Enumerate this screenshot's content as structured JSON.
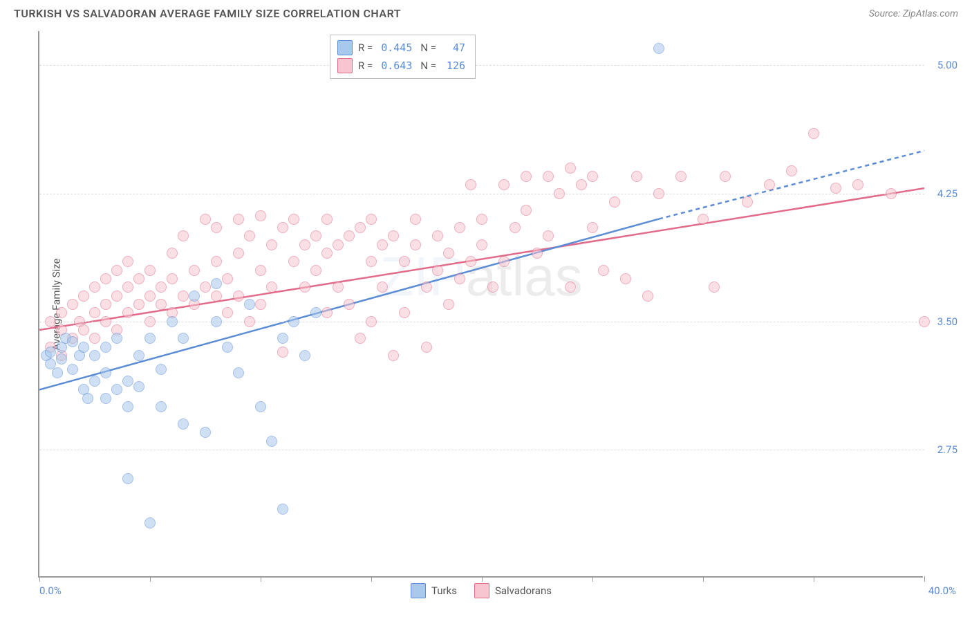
{
  "title": "TURKISH VS SALVADORAN AVERAGE FAMILY SIZE CORRELATION CHART",
  "source": "Source: ZipAtlas.com",
  "watermark_part1": "ZIP",
  "watermark_part2": "atlas",
  "chart": {
    "type": "scatter",
    "y_axis_title": "Average Family Size",
    "xlim": [
      0,
      40
    ],
    "ylim": [
      2.0,
      5.2
    ],
    "x_start_label": "0.0%",
    "x_end_label": "40.0%",
    "x_ticks": [
      0,
      5,
      10,
      15,
      20,
      25,
      30,
      35,
      40
    ],
    "y_gridlines": [
      2.75,
      3.5,
      4.25,
      5.0
    ],
    "y_tick_labels": [
      "2.75",
      "3.50",
      "4.25",
      "5.00"
    ],
    "background_color": "#ffffff",
    "grid_color": "#dddddd",
    "axis_color": "#999999",
    "tick_label_color": "#5b8dd6",
    "series": {
      "turks": {
        "label": "Turks",
        "fill": "#a8c8ec",
        "stroke": "#5b8dd6",
        "R": "0.445",
        "N": "47",
        "trend": {
          "x1": 0,
          "y1": 3.1,
          "x2": 28,
          "y2": 4.1,
          "x2_dash": 40,
          "y2_dash": 4.5
        },
        "points": [
          [
            0.3,
            3.3
          ],
          [
            0.5,
            3.25
          ],
          [
            0.5,
            3.32
          ],
          [
            0.8,
            3.2
          ],
          [
            1.0,
            3.35
          ],
          [
            1.0,
            3.28
          ],
          [
            1.2,
            3.4
          ],
          [
            1.5,
            3.22
          ],
          [
            1.5,
            3.38
          ],
          [
            1.8,
            3.3
          ],
          [
            2.0,
            3.1
          ],
          [
            2.0,
            3.35
          ],
          [
            2.2,
            3.05
          ],
          [
            2.5,
            3.3
          ],
          [
            2.5,
            3.15
          ],
          [
            3.0,
            3.2
          ],
          [
            3.0,
            3.35
          ],
          [
            3.0,
            3.05
          ],
          [
            3.5,
            3.4
          ],
          [
            3.5,
            3.1
          ],
          [
            4.0,
            2.58
          ],
          [
            4.0,
            3.15
          ],
          [
            4.0,
            3.0
          ],
          [
            4.5,
            3.3
          ],
          [
            4.5,
            3.12
          ],
          [
            5.0,
            2.32
          ],
          [
            5.0,
            3.4
          ],
          [
            5.5,
            3.0
          ],
          [
            5.5,
            3.22
          ],
          [
            6.0,
            3.5
          ],
          [
            6.5,
            3.4
          ],
          [
            6.5,
            2.9
          ],
          [
            7.0,
            3.65
          ],
          [
            7.5,
            2.85
          ],
          [
            8.0,
            3.5
          ],
          [
            8.0,
            3.72
          ],
          [
            8.5,
            3.35
          ],
          [
            9.0,
            3.2
          ],
          [
            9.5,
            3.6
          ],
          [
            10.0,
            3.0
          ],
          [
            10.5,
            2.8
          ],
          [
            11.0,
            3.4
          ],
          [
            11.0,
            2.4
          ],
          [
            11.5,
            3.5
          ],
          [
            12.0,
            3.3
          ],
          [
            12.5,
            3.55
          ],
          [
            28.0,
            5.1
          ]
        ]
      },
      "salvadorans": {
        "label": "Salvadorans",
        "fill": "#f7c5d0",
        "stroke": "#e26b8a",
        "R": "0.643",
        "N": "126",
        "trend": {
          "x1": 0,
          "y1": 3.45,
          "x2": 40,
          "y2": 4.28
        },
        "points": [
          [
            0.5,
            3.35
          ],
          [
            0.5,
            3.5
          ],
          [
            1.0,
            3.45
          ],
          [
            1.0,
            3.55
          ],
          [
            1.0,
            3.3
          ],
          [
            1.5,
            3.6
          ],
          [
            1.5,
            3.4
          ],
          [
            1.8,
            3.5
          ],
          [
            2.0,
            3.65
          ],
          [
            2.0,
            3.45
          ],
          [
            2.5,
            3.55
          ],
          [
            2.5,
            3.7
          ],
          [
            2.5,
            3.4
          ],
          [
            3.0,
            3.6
          ],
          [
            3.0,
            3.75
          ],
          [
            3.0,
            3.5
          ],
          [
            3.5,
            3.65
          ],
          [
            3.5,
            3.8
          ],
          [
            3.5,
            3.45
          ],
          [
            4.0,
            3.55
          ],
          [
            4.0,
            3.7
          ],
          [
            4.0,
            3.85
          ],
          [
            4.5,
            3.6
          ],
          [
            4.5,
            3.75
          ],
          [
            5.0,
            3.65
          ],
          [
            5.0,
            3.8
          ],
          [
            5.0,
            3.5
          ],
          [
            5.5,
            3.7
          ],
          [
            5.5,
            3.6
          ],
          [
            6.0,
            3.75
          ],
          [
            6.0,
            3.9
          ],
          [
            6.0,
            3.55
          ],
          [
            6.5,
            3.65
          ],
          [
            6.5,
            4.0
          ],
          [
            7.0,
            3.8
          ],
          [
            7.0,
            3.6
          ],
          [
            7.5,
            4.1
          ],
          [
            7.5,
            3.7
          ],
          [
            8.0,
            3.85
          ],
          [
            8.0,
            3.65
          ],
          [
            8.0,
            4.05
          ],
          [
            8.5,
            3.75
          ],
          [
            8.5,
            3.55
          ],
          [
            9.0,
            3.9
          ],
          [
            9.0,
            4.1
          ],
          [
            9.0,
            3.65
          ],
          [
            9.5,
            3.5
          ],
          [
            9.5,
            4.0
          ],
          [
            10.0,
            3.8
          ],
          [
            10.0,
            3.6
          ],
          [
            10.0,
            4.12
          ],
          [
            10.5,
            3.7
          ],
          [
            10.5,
            3.95
          ],
          [
            11.0,
            4.05
          ],
          [
            11.0,
            3.32
          ],
          [
            11.5,
            3.85
          ],
          [
            11.5,
            4.1
          ],
          [
            12.0,
            3.95
          ],
          [
            12.0,
            3.7
          ],
          [
            12.5,
            4.0
          ],
          [
            12.5,
            3.8
          ],
          [
            13.0,
            3.9
          ],
          [
            13.0,
            3.55
          ],
          [
            13.0,
            4.1
          ],
          [
            13.5,
            3.7
          ],
          [
            13.5,
            3.95
          ],
          [
            14.0,
            4.0
          ],
          [
            14.0,
            3.6
          ],
          [
            14.5,
            3.4
          ],
          [
            14.5,
            4.05
          ],
          [
            15.0,
            3.85
          ],
          [
            15.0,
            3.5
          ],
          [
            15.0,
            4.1
          ],
          [
            15.5,
            3.7
          ],
          [
            15.5,
            3.95
          ],
          [
            16.0,
            3.3
          ],
          [
            16.0,
            4.0
          ],
          [
            16.5,
            3.85
          ],
          [
            16.5,
            3.55
          ],
          [
            17.0,
            3.95
          ],
          [
            17.0,
            4.1
          ],
          [
            17.5,
            3.7
          ],
          [
            17.5,
            3.35
          ],
          [
            18.0,
            4.0
          ],
          [
            18.0,
            3.8
          ],
          [
            18.5,
            3.9
          ],
          [
            18.5,
            3.6
          ],
          [
            19.0,
            4.05
          ],
          [
            19.0,
            3.75
          ],
          [
            19.5,
            4.3
          ],
          [
            19.5,
            3.85
          ],
          [
            20.0,
            3.95
          ],
          [
            20.0,
            4.1
          ],
          [
            20.5,
            3.7
          ],
          [
            21.0,
            4.3
          ],
          [
            21.0,
            3.85
          ],
          [
            21.5,
            4.05
          ],
          [
            22.0,
            4.15
          ],
          [
            22.0,
            4.35
          ],
          [
            22.5,
            3.9
          ],
          [
            23.0,
            4.35
          ],
          [
            23.0,
            4.0
          ],
          [
            23.5,
            4.25
          ],
          [
            24.0,
            4.4
          ],
          [
            24.0,
            3.7
          ],
          [
            24.5,
            4.3
          ],
          [
            25.0,
            4.05
          ],
          [
            25.0,
            4.35
          ],
          [
            25.5,
            3.8
          ],
          [
            26.0,
            4.2
          ],
          [
            26.5,
            3.75
          ],
          [
            27.0,
            4.35
          ],
          [
            27.5,
            3.65
          ],
          [
            28.0,
            4.25
          ],
          [
            29.0,
            4.35
          ],
          [
            30.0,
            4.1
          ],
          [
            30.5,
            3.7
          ],
          [
            31.0,
            4.35
          ],
          [
            32.0,
            4.2
          ],
          [
            33.0,
            4.3
          ],
          [
            34.0,
            4.38
          ],
          [
            35.0,
            4.6
          ],
          [
            36.0,
            4.28
          ],
          [
            37.0,
            4.3
          ],
          [
            38.5,
            4.25
          ],
          [
            40.0,
            3.5
          ]
        ]
      }
    }
  },
  "legend_top": {
    "rows": [
      {
        "series": "turks",
        "R_label": "R =",
        "N_label": "N ="
      },
      {
        "series": "salvadorans",
        "R_label": "R =",
        "N_label": "N ="
      }
    ]
  }
}
